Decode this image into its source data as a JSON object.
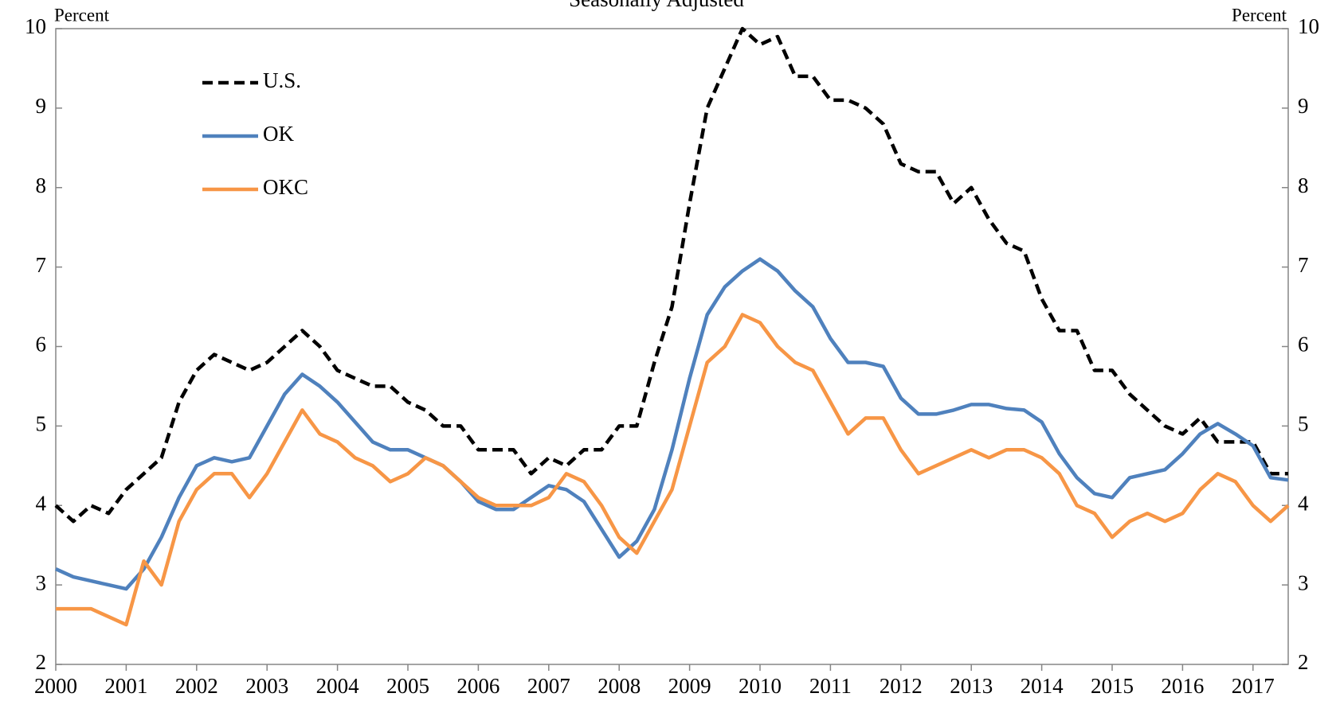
{
  "chart_data": {
    "type": "line",
    "subtitle": "Seasonally Adjusted",
    "ylabel": "Percent",
    "y2label": "Percent",
    "x": [
      2000,
      2000.25,
      2000.5,
      2000.75,
      2001,
      2001.25,
      2001.5,
      2001.75,
      2002,
      2002.25,
      2002.5,
      2002.75,
      2003,
      2003.25,
      2003.5,
      2003.75,
      2004,
      2004.25,
      2004.5,
      2004.75,
      2005,
      2005.25,
      2005.5,
      2005.75,
      2006,
      2006.25,
      2006.5,
      2006.75,
      2007,
      2007.25,
      2007.5,
      2007.75,
      2008,
      2008.25,
      2008.5,
      2008.75,
      2009,
      2009.25,
      2009.5,
      2009.75,
      2010,
      2010.25,
      2010.5,
      2010.75,
      2011,
      2011.25,
      2011.5,
      2011.75,
      2012,
      2012.25,
      2012.5,
      2012.75,
      2013,
      2013.25,
      2013.5,
      2013.75,
      2014,
      2014.25,
      2014.5,
      2014.75,
      2015,
      2015.25,
      2015.5,
      2015.75,
      2016,
      2016.25,
      2016.5,
      2016.75,
      2017,
      2017.25,
      2017.5
    ],
    "series": [
      {
        "name": "U.S.",
        "color": "#000000",
        "dashed": true,
        "values": [
          4.0,
          3.8,
          4.0,
          3.9,
          4.2,
          4.4,
          4.6,
          5.3,
          5.7,
          5.9,
          5.8,
          5.7,
          5.8,
          6.0,
          6.2,
          6.0,
          5.7,
          5.6,
          5.5,
          5.5,
          5.3,
          5.2,
          5.0,
          5.0,
          4.7,
          4.7,
          4.7,
          4.4,
          4.6,
          4.5,
          4.7,
          4.7,
          5.0,
          5.0,
          5.8,
          6.5,
          7.8,
          9.0,
          9.5,
          10.0,
          9.8,
          9.9,
          9.4,
          9.4,
          9.1,
          9.1,
          9.0,
          8.8,
          8.3,
          8.2,
          8.2,
          7.8,
          8.0,
          7.6,
          7.3,
          7.2,
          6.6,
          6.2,
          6.2,
          5.7,
          5.7,
          5.4,
          5.2,
          5.0,
          4.9,
          5.1,
          4.8,
          4.8,
          4.8,
          4.4,
          4.4
        ]
      },
      {
        "name": "OK",
        "color": "#4f81bd",
        "dashed": false,
        "values": [
          3.2,
          3.1,
          3.05,
          3.0,
          2.95,
          3.2,
          3.6,
          4.1,
          4.5,
          4.6,
          4.55,
          4.6,
          5.0,
          5.4,
          5.65,
          5.5,
          5.3,
          5.05,
          4.8,
          4.7,
          4.7,
          4.6,
          4.5,
          4.3,
          4.05,
          3.95,
          3.95,
          4.1,
          4.25,
          4.2,
          4.05,
          3.7,
          3.35,
          3.55,
          3.95,
          4.7,
          5.6,
          6.4,
          6.75,
          6.95,
          7.1,
          6.95,
          6.7,
          6.5,
          6.1,
          5.8,
          5.8,
          5.75,
          5.35,
          5.15,
          5.15,
          5.2,
          5.27,
          5.27,
          5.22,
          5.2,
          5.05,
          4.65,
          4.35,
          4.15,
          4.1,
          4.35,
          4.4,
          4.45,
          4.65,
          4.9,
          5.03,
          4.9,
          4.75,
          4.35,
          4.32
        ]
      },
      {
        "name": "OKC",
        "color": "#f79646",
        "dashed": false,
        "values": [
          2.7,
          2.7,
          2.7,
          2.6,
          2.5,
          3.3,
          3.0,
          3.8,
          4.2,
          4.4,
          4.4,
          4.1,
          4.4,
          4.8,
          5.2,
          4.9,
          4.8,
          4.6,
          4.5,
          4.3,
          4.4,
          4.6,
          4.5,
          4.3,
          4.1,
          4.0,
          4.0,
          4.0,
          4.1,
          4.4,
          4.3,
          4.0,
          3.6,
          3.4,
          3.8,
          4.2,
          5.0,
          5.8,
          6.0,
          6.4,
          6.3,
          6.0,
          5.8,
          5.7,
          5.3,
          4.9,
          5.1,
          5.1,
          4.7,
          4.4,
          4.5,
          4.6,
          4.7,
          4.6,
          4.7,
          4.7,
          4.6,
          4.4,
          4.0,
          3.9,
          3.6,
          3.8,
          3.9,
          3.8,
          3.9,
          4.2,
          4.4,
          4.3,
          4.0,
          3.8,
          4.0
        ]
      }
    ],
    "xlim": [
      2000,
      2017.5
    ],
    "xticks": [
      2000,
      2001,
      2002,
      2003,
      2004,
      2005,
      2006,
      2007,
      2008,
      2009,
      2010,
      2011,
      2012,
      2013,
      2014,
      2015,
      2016,
      2017
    ],
    "ylim": [
      2,
      10
    ],
    "yticks": [
      2,
      3,
      4,
      5,
      6,
      7,
      8,
      9,
      10
    ],
    "y2lim": [
      2,
      10
    ],
    "y2ticks": [
      2,
      3,
      4,
      5,
      6,
      7,
      8,
      9,
      10
    ],
    "grid": false,
    "legend": "upper left"
  }
}
